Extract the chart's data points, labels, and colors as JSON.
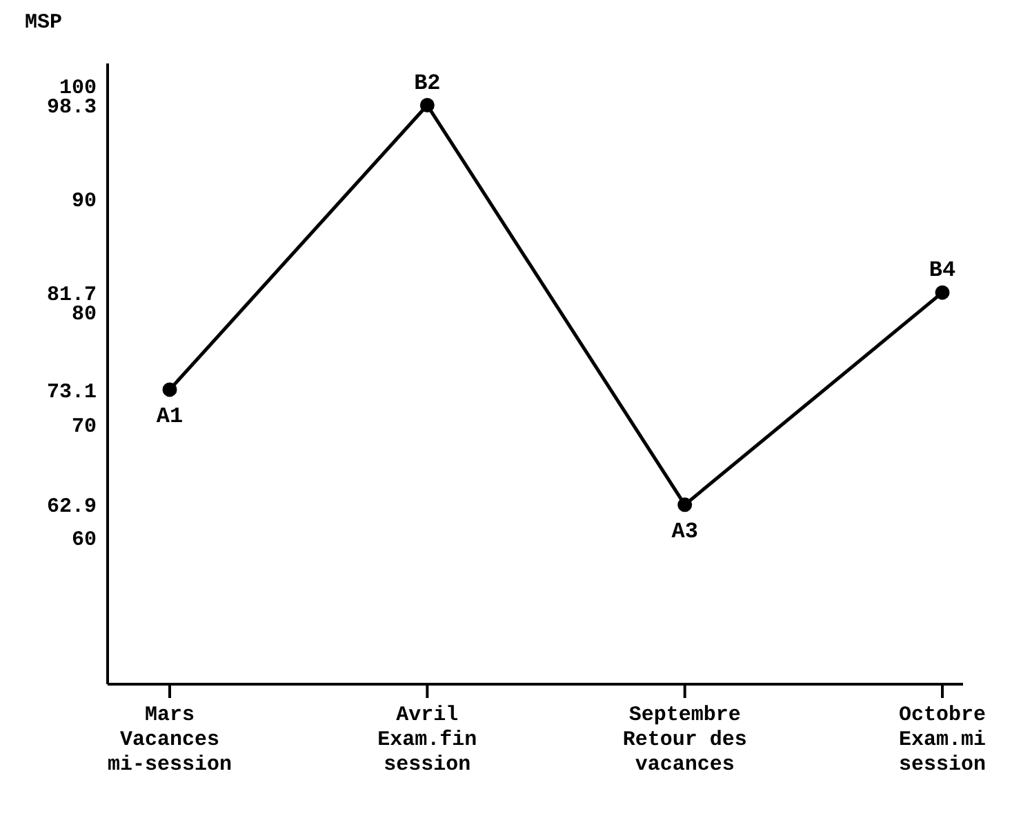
{
  "chart_data": {
    "type": "line",
    "ylabel": "MSP",
    "categories": [
      "Mars\nVacances\nmi-session",
      "Avril\nExam.fin\nsession",
      "Septembre\nRetour des\nvacances",
      "Octobre\nExam.mi\nsession"
    ],
    "series": [
      {
        "color": "#000000",
        "values": [
          73.1,
          98.3,
          62.9,
          81.7
        ]
      }
    ],
    "ylim": [
      47,
      102
    ],
    "yticks": [
      60,
      62.9,
      70,
      73.1,
      80,
      81.7,
      90,
      98.3,
      100
    ],
    "annotations": [
      {
        "text": "A1",
        "x": "Mars\nVacances\nmi-session",
        "y": 73.1
      },
      {
        "text": "B2",
        "x": "Avril\nExam.fin\nsession",
        "y": 98.3
      },
      {
        "text": "A3",
        "x": "Septembre\nRetour des\nvacances",
        "y": 62.9
      },
      {
        "text": "B4",
        "x": "Octobre\nExam.mi\nsession",
        "y": 81.7
      }
    ],
    "marker": "circle",
    "line_style": "solid",
    "grid": false,
    "legend": false
  }
}
